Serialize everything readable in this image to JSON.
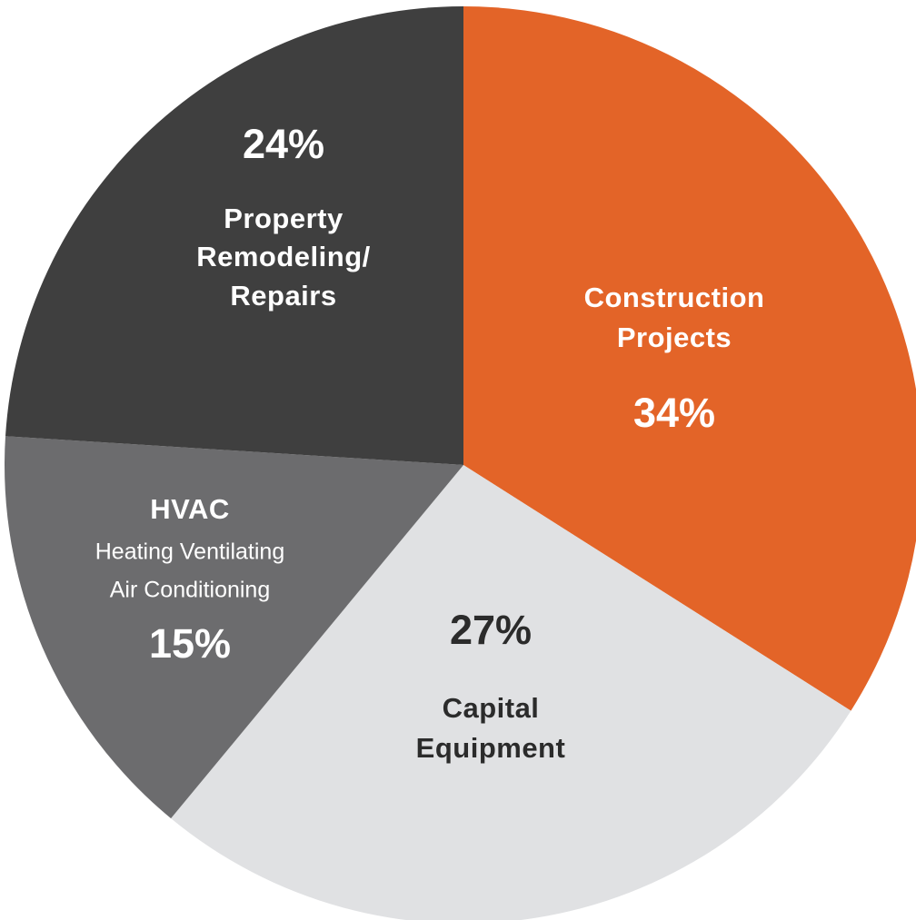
{
  "chart_data": {
    "type": "pie",
    "categories": [
      [
        "Construction",
        "Projects"
      ],
      [
        "Capital",
        "Equipment"
      ],
      [
        "HVAC"
      ],
      [
        "Property",
        "Remodeling/",
        "Repairs"
      ]
    ],
    "descriptions": [
      null,
      null,
      [
        "Heating Ventilating",
        "Air Conditioning"
      ],
      null
    ],
    "values": [
      34,
      27,
      15,
      24
    ],
    "value_labels": [
      "34%",
      "27%",
      "15%",
      "24%"
    ],
    "colors": [
      "#e36428",
      "#e0e1e3",
      "#6c6c6e",
      "#3f3f3f"
    ],
    "label_colors": [
      "#ffffff",
      "#2b2b2b",
      "#ffffff",
      "#ffffff"
    ]
  }
}
